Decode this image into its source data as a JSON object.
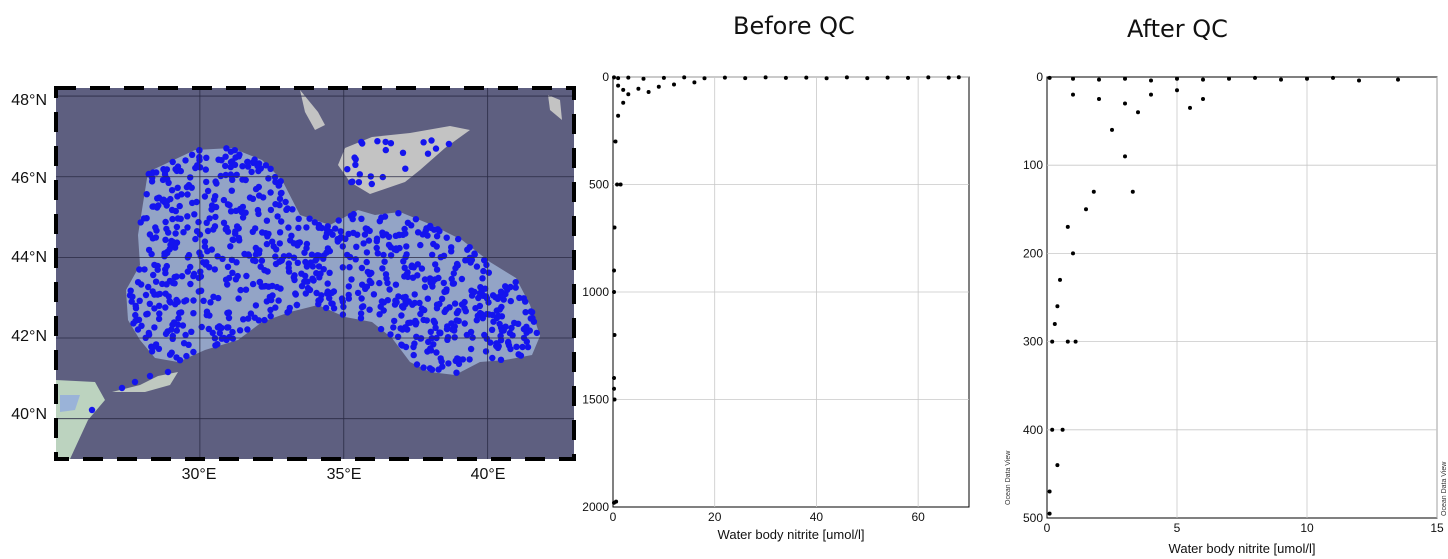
{
  "titles": {
    "before": "Before QC",
    "after": "After QC"
  },
  "watermark": "Ocean Data View",
  "colors": {
    "sea": "#5e5f80",
    "land": "#c3c3c3",
    "basin": "#93a4c6",
    "station": "#1414ee",
    "points": "#000000",
    "grid": "#c8c8c8"
  },
  "map": {
    "lat_labels": [
      "48°N",
      "46°N",
      "44°N",
      "42°N",
      "40°N"
    ],
    "lon_labels": [
      "30°E",
      "35°E",
      "40°E"
    ],
    "lat_range": [
      39,
      48.2
    ],
    "lon_range": [
      25,
      43
    ],
    "lat_ticks": [
      48,
      46,
      44,
      42,
      40
    ],
    "lon_ticks": [
      30,
      35,
      40
    ]
  },
  "chart_data": [
    {
      "type": "scatter",
      "title": "Before QC",
      "xlabel": "Water body nitrite [umol/l]",
      "ylabel": "",
      "xlim": [
        0,
        70
      ],
      "ylim": [
        2000,
        0
      ],
      "y_inverted": true,
      "xticks": [
        0,
        20,
        40,
        60
      ],
      "yticks": [
        0,
        500,
        1000,
        1500,
        2000
      ],
      "grid": true,
      "points": [
        [
          0.2,
          2
        ],
        [
          1,
          5
        ],
        [
          3,
          3
        ],
        [
          6,
          8
        ],
        [
          10,
          4
        ],
        [
          14,
          2
        ],
        [
          18,
          6
        ],
        [
          22,
          3
        ],
        [
          26,
          5
        ],
        [
          30,
          2
        ],
        [
          34,
          4
        ],
        [
          38,
          3
        ],
        [
          42,
          6
        ],
        [
          46,
          2
        ],
        [
          50,
          5
        ],
        [
          54,
          3
        ],
        [
          58,
          4
        ],
        [
          62,
          2
        ],
        [
          66,
          3
        ],
        [
          68,
          1
        ],
        [
          1,
          40
        ],
        [
          2,
          60
        ],
        [
          3,
          80
        ],
        [
          5,
          55
        ],
        [
          7,
          70
        ],
        [
          9,
          45
        ],
        [
          12,
          35
        ],
        [
          16,
          25
        ],
        [
          2,
          120
        ],
        [
          1,
          180
        ],
        [
          0.5,
          300
        ],
        [
          0.8,
          500
        ],
        [
          1.5,
          500
        ],
        [
          0.3,
          700
        ],
        [
          0.2,
          900
        ],
        [
          0.2,
          1000
        ],
        [
          0.3,
          1200
        ],
        [
          0.2,
          1400
        ],
        [
          0.2,
          1450
        ],
        [
          0.3,
          1500
        ],
        [
          0.2,
          1980
        ],
        [
          0.6,
          1975
        ]
      ]
    },
    {
      "type": "scatter",
      "title": "After QC",
      "xlabel": "Water body nitrite [umol/l]",
      "ylabel": "",
      "xlim": [
        0,
        15
      ],
      "ylim": [
        500,
        0
      ],
      "y_inverted": true,
      "xticks": [
        0,
        5,
        10,
        15
      ],
      "yticks": [
        100,
        200,
        300,
        400,
        500
      ],
      "grid": true,
      "points": [
        [
          0.1,
          1
        ],
        [
          1,
          2
        ],
        [
          2,
          3
        ],
        [
          3,
          2
        ],
        [
          4,
          4
        ],
        [
          5,
          2
        ],
        [
          6,
          3
        ],
        [
          7,
          2
        ],
        [
          8,
          1
        ],
        [
          9,
          3
        ],
        [
          10,
          2
        ],
        [
          11,
          1
        ],
        [
          12,
          4
        ],
        [
          13.5,
          3
        ],
        [
          1,
          20
        ],
        [
          2,
          25
        ],
        [
          3,
          30
        ],
        [
          4,
          20
        ],
        [
          5,
          15
        ],
        [
          6,
          25
        ],
        [
          3.5,
          40
        ],
        [
          5.5,
          35
        ],
        [
          2.5,
          60
        ],
        [
          3,
          90
        ],
        [
          3.3,
          130
        ],
        [
          1.5,
          150
        ],
        [
          1.8,
          130
        ],
        [
          0.8,
          170
        ],
        [
          1,
          200
        ],
        [
          0.5,
          230
        ],
        [
          0.4,
          260
        ],
        [
          0.3,
          280
        ],
        [
          0.2,
          300
        ],
        [
          0.8,
          300
        ],
        [
          1.1,
          300
        ],
        [
          0.2,
          400
        ],
        [
          0.6,
          400
        ],
        [
          0.4,
          440
        ],
        [
          0.1,
          470
        ],
        [
          0.1,
          495
        ]
      ]
    }
  ]
}
